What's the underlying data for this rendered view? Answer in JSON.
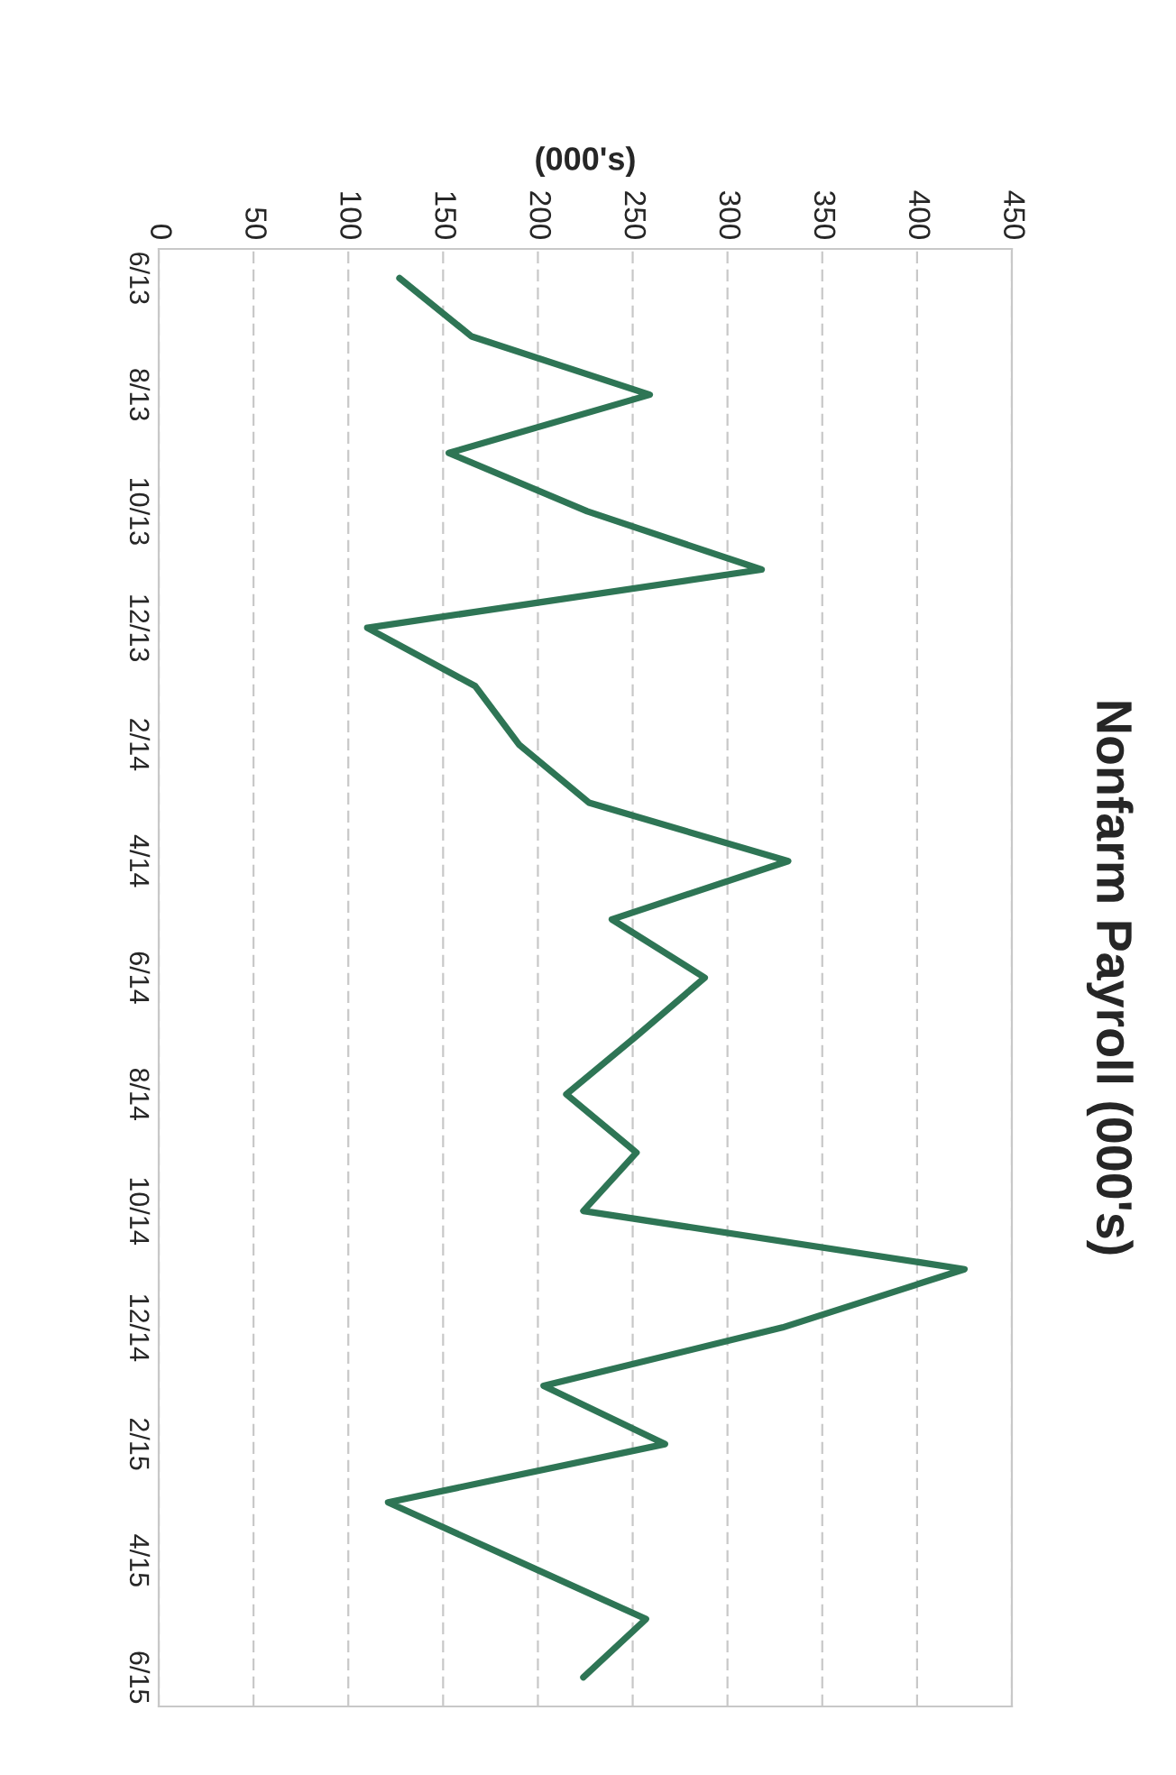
{
  "chart_data": {
    "type": "line",
    "title": "Nonfarm Payroll (000's)",
    "xlabel": "(000's)",
    "orientation": "horizontal",
    "categories": [
      "6/13",
      null,
      "8/13",
      null,
      "10/13",
      null,
      "12/13",
      null,
      "2/14",
      null,
      "4/14",
      null,
      "6/14",
      null,
      "8/14",
      null,
      "10/14",
      null,
      "12/14",
      null,
      "2/15",
      null,
      "4/15",
      null,
      "6/15"
    ],
    "series": [
      {
        "color": "#2e7555",
        "values": [
          127,
          165,
          259,
          153,
          226,
          318,
          110,
          167,
          190,
          227,
          332,
          239,
          288,
          252,
          215,
          252,
          224,
          425,
          329,
          203,
          267,
          121,
          189,
          257,
          224
        ]
      }
    ],
    "xlim": [
      0,
      450
    ],
    "xticks": [
      0,
      50,
      100,
      150,
      200,
      250,
      300,
      350,
      400,
      450
    ],
    "grid": "x",
    "marker": "none",
    "line_style": "solid"
  }
}
